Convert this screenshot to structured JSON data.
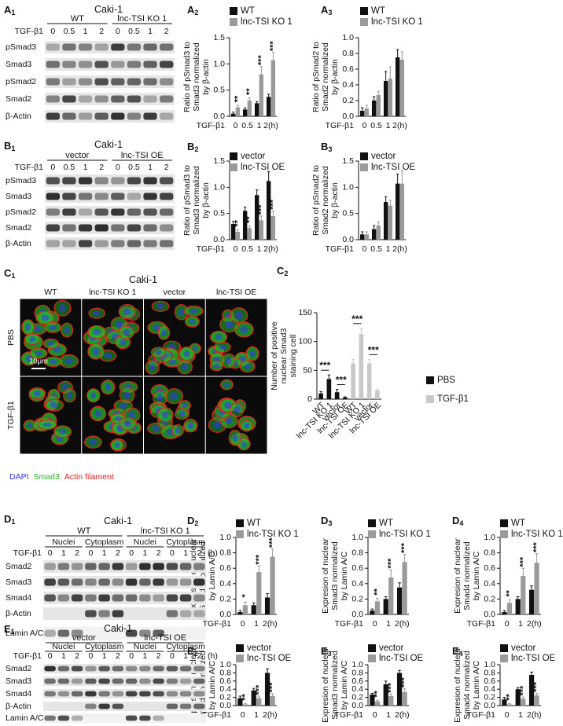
{
  "chart_data": [
    {
      "type": "bar",
      "panel": {
        "letter": "A",
        "sub": "2"
      },
      "ylabel": [
        "Ratio of pSmad3 to",
        "Smad3 normalized",
        "by β-actin"
      ],
      "x_label": "TGF-β1",
      "categories": [
        "0",
        "0.5",
        "1",
        "2(h)"
      ],
      "series": [
        {
          "name": "WT",
          "color": "#111111",
          "values": [
            0.05,
            0.13,
            0.25,
            0.37
          ],
          "errors": [
            0.03,
            0.03,
            0.03,
            0.05
          ]
        },
        {
          "name": "lnc-TSI KO 1",
          "color": "#9a9a9a",
          "values": [
            0.17,
            0.3,
            0.8,
            1.07
          ],
          "errors": [
            0.04,
            0.05,
            0.15,
            0.15
          ],
          "significance": [
            "**",
            "**",
            "***",
            "***"
          ]
        }
      ],
      "ylim": [
        0,
        1.5
      ],
      "yticks": [
        {
          "value": 0,
          "label": "0.0"
        },
        {
          "value": 0.5,
          "label": "0.5"
        },
        {
          "value": 1,
          "label": "1.0"
        },
        {
          "value": 1.5,
          "label": "1.5"
        }
      ]
    },
    {
      "type": "bar",
      "panel": {
        "letter": "A",
        "sub": "3"
      },
      "ylabel": [
        "Ratio of pSmad2 to",
        "Smad2 normalized",
        "by β-actin"
      ],
      "x_label": "TGF-β1",
      "categories": [
        "0",
        "0.5",
        "1",
        "2(h)"
      ],
      "series": [
        {
          "name": "WT",
          "color": "#111111",
          "values": [
            0.07,
            0.2,
            0.45,
            0.75
          ],
          "errors": [
            0.04,
            0.05,
            0.12,
            0.1
          ]
        },
        {
          "name": "lnc-TSI KO 1",
          "color": "#9a9a9a",
          "values": [
            0.1,
            0.27,
            0.48,
            0.72
          ],
          "errors": [
            0.04,
            0.05,
            0.15,
            0.1
          ]
        }
      ],
      "ylim": [
        0,
        1
      ],
      "yticks": [
        {
          "value": 0,
          "label": "0.0"
        },
        {
          "value": 0.2,
          "label": "0.2"
        },
        {
          "value": 0.4,
          "label": "0.4"
        },
        {
          "value": 0.6,
          "label": "0.6"
        },
        {
          "value": 0.8,
          "label": "0.8"
        },
        {
          "value": 1,
          "label": "1.0"
        }
      ]
    },
    {
      "type": "bar",
      "panel": {
        "letter": "B",
        "sub": "2"
      },
      "ylabel": [
        "Ratio of pSmad3 to",
        "Smad3 normalized",
        "by β-actin"
      ],
      "x_label": "TGF-β1",
      "categories": [
        "0",
        "0.5",
        "1",
        "2(h)"
      ],
      "series": [
        {
          "name": "vector",
          "color": "#111111",
          "values": [
            0.3,
            0.55,
            0.85,
            1.12
          ],
          "errors": [
            0.05,
            0.07,
            0.1,
            0.18
          ]
        },
        {
          "name": "lnc-TSI OE",
          "color": "#9a9a9a",
          "values": [
            0.15,
            0.22,
            0.37,
            0.45
          ],
          "errors": [
            0.04,
            0.04,
            0.08,
            0.1
          ],
          "significance": [
            "**",
            "**",
            "***",
            "***"
          ]
        }
      ],
      "ylim": [
        0,
        1.5
      ],
      "yticks": [
        {
          "value": 0,
          "label": "0.0"
        },
        {
          "value": 0.5,
          "label": "0.5"
        },
        {
          "value": 1,
          "label": "1.0"
        },
        {
          "value": 1.5,
          "label": "1.5"
        }
      ]
    },
    {
      "type": "bar",
      "panel": {
        "letter": "B",
        "sub": "3"
      },
      "ylabel": [
        "Ratio of pSmad2 to",
        "Smad2 normalized",
        "by β-actin"
      ],
      "x_label": "TGF-β1",
      "categories": [
        "0",
        "0.5",
        "1",
        "2(h)"
      ],
      "series": [
        {
          "name": "vector",
          "color": "#111111",
          "values": [
            0.1,
            0.2,
            0.72,
            1.07
          ],
          "errors": [
            0.05,
            0.07,
            0.1,
            0.18
          ]
        },
        {
          "name": "lnc-TSI OE",
          "color": "#9a9a9a",
          "values": [
            0.1,
            0.27,
            0.65,
            1.07
          ],
          "errors": [
            0.05,
            0.07,
            0.1,
            0.25
          ]
        }
      ],
      "ylim": [
        0,
        1.5
      ],
      "yticks": [
        {
          "value": 0,
          "label": "0.0"
        },
        {
          "value": 0.5,
          "label": "0.5"
        },
        {
          "value": 1,
          "label": "1.0"
        },
        {
          "value": 1.5,
          "label": "1.5"
        }
      ]
    },
    {
      "type": "bar",
      "panel": {
        "letter": "C",
        "sub": "2"
      },
      "ylabel": [
        "Number of positive",
        "nuclear Smad3",
        "staining cell"
      ],
      "categories": [
        "WT",
        "lnc-TSI KO 1",
        "vector",
        "lnc-TSI OE",
        "WT",
        "lnc-TSI KO 1",
        "vector",
        "lnc-TSI OE"
      ],
      "series": [
        {
          "name": "PBS",
          "color": "#111111",
          "values": [
            10,
            35,
            12,
            3,
            null,
            null,
            null,
            null
          ],
          "errors": [
            3,
            7,
            5,
            1,
            null,
            null,
            null,
            null
          ],
          "significance": [
            null,
            "***",
            null,
            "***",
            null,
            null,
            null,
            null
          ]
        },
        {
          "name": "TGF-β1",
          "color": "#c8c8c8",
          "values": [
            null,
            null,
            null,
            null,
            62,
            113,
            62,
            15
          ],
          "errors": [
            null,
            null,
            null,
            null,
            7,
            10,
            7,
            2
          ],
          "significance": [
            null,
            null,
            null,
            null,
            null,
            "***",
            null,
            "***"
          ]
        }
      ],
      "ylim": [
        0,
        150
      ],
      "yticks": [
        0,
        50,
        100,
        150
      ]
    },
    {
      "type": "bar",
      "panel": {
        "letter": "D",
        "sub": "2"
      },
      "ylabel": [
        "Expresion of nuclear",
        "Smad2 normalized",
        "by Lamin A/C"
      ],
      "x_label": "TGF-β1",
      "categories": [
        "0",
        "1",
        "2(h)"
      ],
      "series": [
        {
          "name": "WT",
          "color": "#111111",
          "values": [
            0.03,
            0.12,
            0.22
          ],
          "errors": [
            0.02,
            0.03,
            0.05
          ]
        },
        {
          "name": "lnc-TSI KO 1",
          "color": "#9a9a9a",
          "values": [
            0.12,
            0.55,
            0.75
          ],
          "errors": [
            0.04,
            0.08,
            0.1
          ],
          "significance": [
            "*",
            "***",
            "***"
          ]
        }
      ],
      "ylim": [
        0,
        1
      ],
      "yticks": [
        {
          "value": 0,
          "label": "0.0"
        },
        {
          "value": 0.2,
          "label": "0.2"
        },
        {
          "value": 0.4,
          "label": "0.4"
        },
        {
          "value": 0.6,
          "label": "0.6"
        },
        {
          "value": 0.8,
          "label": "0.8"
        },
        {
          "value": 1,
          "label": "1.0"
        }
      ]
    },
    {
      "type": "bar",
      "panel": {
        "letter": "D",
        "sub": "3"
      },
      "ylabel": [
        "Expresion of nuclear",
        "Smad3 normalized",
        "by Lamin A/C"
      ],
      "x_label": "TGF-β1",
      "categories": [
        "0",
        "1",
        "2(h)"
      ],
      "series": [
        {
          "name": "WT",
          "color": "#111111",
          "values": [
            0.05,
            0.2,
            0.35
          ],
          "errors": [
            0.02,
            0.03,
            0.06
          ]
        },
        {
          "name": "lnc-TSI KO 1",
          "color": "#9a9a9a",
          "values": [
            0.17,
            0.48,
            0.68
          ],
          "errors": [
            0.04,
            0.1,
            0.1
          ],
          "significance": [
            "**",
            "***",
            "***"
          ]
        }
      ],
      "ylim": [
        0,
        1
      ],
      "yticks": [
        {
          "value": 0,
          "label": "0.0"
        },
        {
          "value": 0.2,
          "label": "0.2"
        },
        {
          "value": 0.4,
          "label": "0.4"
        },
        {
          "value": 0.6,
          "label": "0.6"
        },
        {
          "value": 0.8,
          "label": "0.8"
        },
        {
          "value": 1,
          "label": "1.0"
        }
      ]
    },
    {
      "type": "bar",
      "panel": {
        "letter": "D",
        "sub": "4"
      },
      "ylabel": [
        "Expresion of nuclear",
        "Smad4 normalized",
        "by Lamin A/C"
      ],
      "x_label": "TGF-β1",
      "categories": [
        "0",
        "1",
        "2(h)"
      ],
      "series": [
        {
          "name": "WT",
          "color": "#111111",
          "values": [
            0.03,
            0.2,
            0.32
          ],
          "errors": [
            0.02,
            0.03,
            0.05
          ]
        },
        {
          "name": "lnc-TSI KO 1",
          "color": "#9a9a9a",
          "values": [
            0.15,
            0.5,
            0.67
          ],
          "errors": [
            0.04,
            0.1,
            0.12
          ],
          "significance": [
            "**",
            "***",
            "***"
          ]
        }
      ],
      "ylim": [
        0,
        1
      ],
      "yticks": [
        {
          "value": 0,
          "label": "0.0"
        },
        {
          "value": 0.2,
          "label": "0.2"
        },
        {
          "value": 0.4,
          "label": "0.4"
        },
        {
          "value": 0.6,
          "label": "0.6"
        },
        {
          "value": 0.8,
          "label": "0.8"
        },
        {
          "value": 1,
          "label": "1.0"
        }
      ]
    },
    {
      "type": "bar",
      "panel": {
        "letter": "E",
        "sub": "2"
      },
      "ylabel": [
        "Expresion of nuclear",
        "Smad2 normalized",
        "by Lamin A/C"
      ],
      "x_label": "TGF-β1",
      "categories": [
        "0",
        "1",
        "2(h)"
      ],
      "series": [
        {
          "name": "vector",
          "color": "#111111",
          "values": [
            0.18,
            0.37,
            0.8
          ],
          "errors": [
            0.05,
            0.05,
            0.1
          ]
        },
        {
          "name": "lnc-TSI OE",
          "color": "#9a9a9a",
          "values": [
            0.03,
            0.18,
            0.23
          ],
          "errors": [
            0.02,
            0.05,
            0.06
          ],
          "significance": [
            "**",
            "***",
            "***"
          ]
        }
      ],
      "ylim": [
        0,
        1
      ],
      "yticks": [
        {
          "value": 0,
          "label": "0.0"
        },
        {
          "value": 0.2,
          "label": "0.2"
        },
        {
          "value": 0.4,
          "label": "0.4"
        },
        {
          "value": 0.6,
          "label": "0.6"
        },
        {
          "value": 0.8,
          "label": "0.8"
        },
        {
          "value": 1,
          "label": "1.0"
        }
      ]
    },
    {
      "type": "bar",
      "panel": {
        "letter": "E",
        "sub": "3"
      },
      "ylabel": [
        "Expresion of nuclear",
        "Smad3 normalized",
        "by Lamin A/C"
      ],
      "x_label": "TGF-β1",
      "categories": [
        "0",
        "1",
        "2(h)"
      ],
      "series": [
        {
          "name": "vector",
          "color": "#111111",
          "values": [
            0.27,
            0.52,
            0.8
          ],
          "errors": [
            0.03,
            0.08,
            0.06
          ]
        },
        {
          "name": "lnc-TSI OE",
          "color": "#9a9a9a",
          "values": [
            0.1,
            0.23,
            0.33
          ],
          "errors": [
            0.03,
            0.05,
            0.08
          ],
          "significance": [
            "**",
            "***",
            "***"
          ]
        }
      ],
      "ylim": [
        0,
        1
      ],
      "yticks": [
        {
          "value": 0,
          "label": "0.0"
        },
        {
          "value": 0.2,
          "label": "0.2"
        },
        {
          "value": 0.4,
          "label": "0.4"
        },
        {
          "value": 0.6,
          "label": "0.6"
        },
        {
          "value": 0.8,
          "label": "0.8"
        },
        {
          "value": 1,
          "label": "1.0"
        }
      ]
    },
    {
      "type": "bar",
      "panel": {
        "letter": "E",
        "sub": "4"
      },
      "ylabel": [
        "Expresion of nuclear",
        "Smad4 normalized",
        "by Lamin A/C"
      ],
      "x_label": "TGF-β1",
      "categories": [
        "0",
        "1",
        "2(h)"
      ],
      "series": [
        {
          "name": "vector",
          "color": "#111111",
          "values": [
            0.15,
            0.4,
            0.75
          ],
          "errors": [
            0.05,
            0.04,
            0.07
          ]
        },
        {
          "name": "lnc-TSI OE",
          "color": "#9a9a9a",
          "values": [
            0.03,
            0.17,
            0.25
          ],
          "errors": [
            0.02,
            0.04,
            0.05
          ],
          "significance": [
            "**",
            "***",
            "***"
          ]
        }
      ],
      "ylim": [
        0,
        1
      ],
      "yticks": [
        {
          "value": 0,
          "label": "0.0"
        },
        {
          "value": 0.2,
          "label": "0.2"
        },
        {
          "value": 0.4,
          "label": "0.4"
        },
        {
          "value": 0.6,
          "label": "0.6"
        },
        {
          "value": 0.8,
          "label": "0.8"
        },
        {
          "value": 1,
          "label": "1.0"
        }
      ]
    }
  ],
  "blots": [
    {
      "panel": {
        "letter": "A",
        "sub": "1"
      },
      "title": "Caki-1",
      "groups": [
        "WT",
        "lnc-TSI KO 1"
      ],
      "treatment": "TGF-β1",
      "lanes": [
        "0",
        "0.5",
        "1",
        "2",
        "0",
        "0.5",
        "1",
        "2"
      ],
      "rows": [
        "pSmad3",
        "Smad3",
        "pSmad2",
        "Smad2",
        "β-Actin"
      ]
    },
    {
      "panel": {
        "letter": "B",
        "sub": "1"
      },
      "title": "Caki-1",
      "groups": [
        "vector",
        "lnc-TSI OE"
      ],
      "treatment": "TGF-β1",
      "lanes": [
        "0",
        "0.5",
        "1",
        "2",
        "0",
        "0.5",
        "1",
        "2"
      ],
      "rows": [
        "pSmad3",
        "Smad3",
        "pSmad2",
        "Smad2",
        "β-Actin"
      ]
    },
    {
      "panel": {
        "letter": "D",
        "sub": "1"
      },
      "title": "Caki-1",
      "groups": [
        "WT",
        "lnc-TSI KO 1"
      ],
      "fractions": [
        "Nuclei",
        "Cytoplasm",
        "Nuclei",
        "Cytoplasm"
      ],
      "treatment": "TGF-β1",
      "lanes": [
        "0",
        "1",
        "2",
        "0",
        "1",
        "2",
        "0",
        "1",
        "2",
        "0",
        "1",
        "2"
      ],
      "unit": "(h)",
      "rows": [
        "Smad2",
        "Smad3",
        "Smad4",
        "β-Actin",
        "Lamin A/C"
      ]
    },
    {
      "panel": {
        "letter": "E",
        "sub": "1"
      },
      "title": "Caki-1",
      "groups": [
        "vector",
        "lnc-TSI OE"
      ],
      "fractions": [
        "Nuclei",
        "Cytoplasm",
        "Nuclei",
        "Cytoplasm"
      ],
      "treatment": "TGF-β1",
      "lanes": [
        "0",
        "1",
        "2",
        "0",
        "1",
        "2",
        "0",
        "1",
        "2",
        "0",
        "1",
        "2"
      ],
      "unit": "(h)",
      "rows": [
        "Smad2",
        "Smad3",
        "Smad4",
        "β-Actin",
        "Lamin A/C"
      ]
    }
  ],
  "micrograph": {
    "panel": {
      "letter": "C",
      "sub": "1"
    },
    "title": "Caki-1",
    "columns": [
      "WT",
      "lnc-TSI KO 1",
      "vector",
      "lnc-TSI OE"
    ],
    "rows": [
      "PBS",
      "TGF-β1"
    ],
    "scale_bar": "10μm",
    "stains": [
      {
        "name": "DAPI",
        "color": "#3333ff"
      },
      {
        "name": "Smad3",
        "color": "#22bb22"
      },
      {
        "name": "Actin filament",
        "color": "#dd2222"
      }
    ]
  }
}
